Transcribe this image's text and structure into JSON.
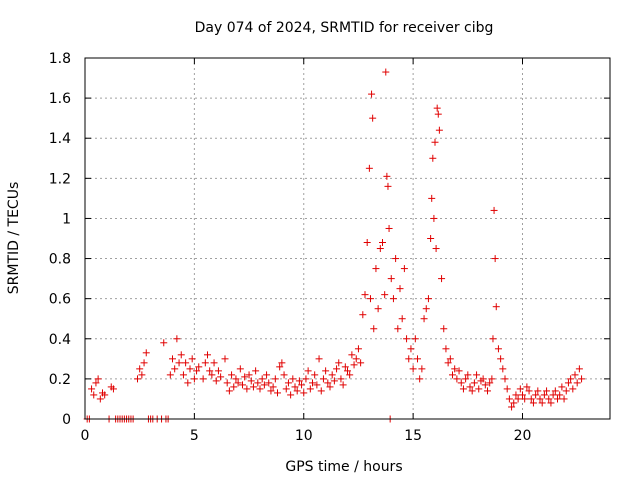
{
  "chart_data": {
    "type": "scatter",
    "title": "Day 074 of 2024, SRMTID for receiver cibg",
    "xlabel": "GPS time / hours",
    "ylabel": "SRMTID / TECUs",
    "xlim": [
      0,
      24
    ],
    "ylim": [
      0,
      1.8
    ],
    "xticks": [
      0,
      5,
      10,
      15,
      20
    ],
    "xtick_labels": [
      "0",
      "5",
      "10",
      "15",
      "20"
    ],
    "yticks": [
      0,
      0.2,
      0.4,
      0.6,
      0.8,
      1.0,
      1.2,
      1.4,
      1.6,
      1.8
    ],
    "ytick_labels": [
      "0",
      "0.2",
      "0.4",
      "0.6",
      "0.8",
      "1",
      "1.2",
      "1.4",
      "1.6",
      "1.8"
    ],
    "grid": true,
    "marker": "+",
    "color": "#e00000",
    "series": [
      {
        "name": "SRMTID",
        "x": [
          0.1,
          0.2,
          0.3,
          0.4,
          0.5,
          0.6,
          0.7,
          0.8,
          0.9,
          1.1,
          1.2,
          1.3,
          1.4,
          1.5,
          1.6,
          1.7,
          1.8,
          1.9,
          2.0,
          2.1,
          2.2,
          2.4,
          2.5,
          2.6,
          2.7,
          2.8,
          2.9,
          3.0,
          3.1,
          3.3,
          3.5,
          3.6,
          3.7,
          3.8,
          3.9,
          4.0,
          4.1,
          4.2,
          4.3,
          4.4,
          4.5,
          4.6,
          4.7,
          4.8,
          4.9,
          5.0,
          5.1,
          5.2,
          5.4,
          5.5,
          5.6,
          5.7,
          5.8,
          5.9,
          6.0,
          6.1,
          6.2,
          6.4,
          6.5,
          6.6,
          6.7,
          6.8,
          6.9,
          7.0,
          7.1,
          7.2,
          7.3,
          7.4,
          7.5,
          7.6,
          7.7,
          7.8,
          7.9,
          8.0,
          8.1,
          8.2,
          8.3,
          8.4,
          8.5,
          8.6,
          8.7,
          8.8,
          8.9,
          9.0,
          9.1,
          9.2,
          9.3,
          9.4,
          9.5,
          9.6,
          9.7,
          9.8,
          9.9,
          10.0,
          10.1,
          10.2,
          10.3,
          10.4,
          10.5,
          10.6,
          10.7,
          10.8,
          10.9,
          11.0,
          11.1,
          11.2,
          11.3,
          11.4,
          11.5,
          11.6,
          11.7,
          11.8,
          11.9,
          12.0,
          12.1,
          12.2,
          12.3,
          12.4,
          12.5,
          12.6,
          12.7,
          12.8,
          12.9,
          13.0,
          13.05,
          13.1,
          13.15,
          13.2,
          13.3,
          13.4,
          13.5,
          13.6,
          13.7,
          13.75,
          13.8,
          13.85,
          13.9,
          13.95,
          14.0,
          14.1,
          14.2,
          14.3,
          14.4,
          14.5,
          14.6,
          14.7,
          14.8,
          14.9,
          15.0,
          15.1,
          15.2,
          15.3,
          15.4,
          15.5,
          15.6,
          15.7,
          15.8,
          15.85,
          15.9,
          15.95,
          16.0,
          16.05,
          16.1,
          16.15,
          16.2,
          16.3,
          16.4,
          16.5,
          16.6,
          16.7,
          16.8,
          16.9,
          17.0,
          17.1,
          17.2,
          17.3,
          17.4,
          17.5,
          17.6,
          17.7,
          17.8,
          17.9,
          18.0,
          18.1,
          18.2,
          18.3,
          18.4,
          18.5,
          18.6,
          18.65,
          18.7,
          18.75,
          18.8,
          18.9,
          19.0,
          19.1,
          19.2,
          19.3,
          19.4,
          19.5,
          19.6,
          19.7,
          19.8,
          19.9,
          20.0,
          20.1,
          20.2,
          20.3,
          20.4,
          20.5,
          20.6,
          20.7,
          20.8,
          20.9,
          21.0,
          21.1,
          21.2,
          21.3,
          21.4,
          21.5,
          21.6,
          21.7,
          21.8,
          21.9,
          22.0,
          22.1,
          22.2,
          22.3,
          22.4,
          22.5,
          22.6,
          22.7
        ],
        "y": [
          0.0,
          0.0,
          0.15,
          0.12,
          0.18,
          0.2,
          0.1,
          0.13,
          0.12,
          0.0,
          0.16,
          0.15,
          0.0,
          0.0,
          0.0,
          0.0,
          0.0,
          0.0,
          0.0,
          0.0,
          0.0,
          0.2,
          0.25,
          0.22,
          0.28,
          0.33,
          0.0,
          0.0,
          0.0,
          0.0,
          0.0,
          0.38,
          0.0,
          0.0,
          0.22,
          0.3,
          0.25,
          0.4,
          0.28,
          0.32,
          0.22,
          0.28,
          0.18,
          0.25,
          0.3,
          0.2,
          0.24,
          0.26,
          0.2,
          0.28,
          0.32,
          0.24,
          0.22,
          0.28,
          0.19,
          0.24,
          0.21,
          0.3,
          0.18,
          0.14,
          0.22,
          0.16,
          0.2,
          0.18,
          0.25,
          0.17,
          0.21,
          0.15,
          0.22,
          0.19,
          0.16,
          0.24,
          0.18,
          0.15,
          0.2,
          0.17,
          0.22,
          0.18,
          0.14,
          0.16,
          0.2,
          0.13,
          0.26,
          0.28,
          0.22,
          0.15,
          0.18,
          0.12,
          0.2,
          0.16,
          0.14,
          0.19,
          0.17,
          0.13,
          0.2,
          0.24,
          0.15,
          0.18,
          0.22,
          0.17,
          0.3,
          0.14,
          0.2,
          0.24,
          0.18,
          0.16,
          0.22,
          0.19,
          0.25,
          0.28,
          0.2,
          0.17,
          0.26,
          0.24,
          0.22,
          0.32,
          0.27,
          0.3,
          0.35,
          0.28,
          0.52,
          0.62,
          0.88,
          1.25,
          0.6,
          1.62,
          1.5,
          0.45,
          0.75,
          0.55,
          0.85,
          0.88,
          0.62,
          1.73,
          1.21,
          1.16,
          0.95,
          0.0,
          0.7,
          0.6,
          0.8,
          0.45,
          0.65,
          0.5,
          0.75,
          0.4,
          0.3,
          0.35,
          0.25,
          0.4,
          0.3,
          0.2,
          0.25,
          0.5,
          0.55,
          0.6,
          0.9,
          1.1,
          1.3,
          1.0,
          1.38,
          0.85,
          1.55,
          1.52,
          1.44,
          0.7,
          0.45,
          0.35,
          0.28,
          0.3,
          0.22,
          0.25,
          0.2,
          0.24,
          0.18,
          0.15,
          0.2,
          0.22,
          0.16,
          0.14,
          0.18,
          0.22,
          0.15,
          0.19,
          0.2,
          0.17,
          0.14,
          0.18,
          0.2,
          0.4,
          1.04,
          0.8,
          0.56,
          0.35,
          0.3,
          0.25,
          0.2,
          0.15,
          0.1,
          0.06,
          0.08,
          0.12,
          0.1,
          0.15,
          0.12,
          0.1,
          0.16,
          0.14,
          0.1,
          0.08,
          0.12,
          0.14,
          0.1,
          0.08,
          0.12,
          0.14,
          0.1,
          0.08,
          0.12,
          0.14,
          0.1,
          0.12,
          0.16,
          0.1,
          0.14,
          0.18,
          0.2,
          0.15,
          0.22,
          0.18,
          0.25,
          0.2
        ]
      }
    ]
  }
}
